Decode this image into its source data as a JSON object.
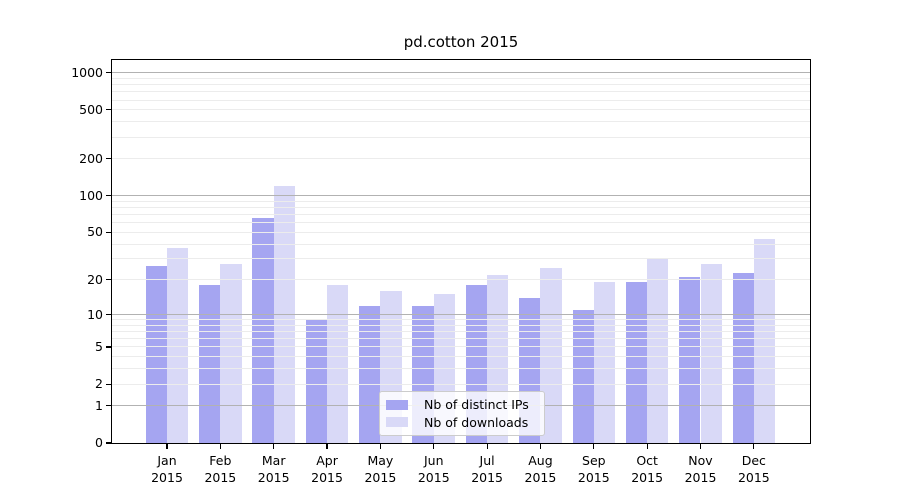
{
  "title": "pd.cotton 2015",
  "colors": {
    "background": "#ffffff",
    "ips_bar": "#a5a5f1",
    "downloads_bar": "#d9d9f7",
    "major_gridline": "#b2b2b2",
    "minor_gridline": "#ececec",
    "axis": "#000000",
    "text": "#000000",
    "legend_border": "#cccccc",
    "legend_background": "rgba(255,255,255,0.8)"
  },
  "chart_data": {
    "type": "bar",
    "title": "pd.cotton 2015",
    "categories": [
      "Jan",
      "Feb",
      "Mar",
      "Apr",
      "May",
      "Jun",
      "Jul",
      "Aug",
      "Sep",
      "Oct",
      "Nov",
      "Dec"
    ],
    "category_year": "2015",
    "series": [
      {
        "name": "Nb of distinct IPs",
        "color": "#a5a5f1",
        "values": [
          26,
          18,
          66,
          9,
          12,
          12,
          18,
          14,
          11,
          19,
          21,
          23
        ]
      },
      {
        "name": "Nb of downloads",
        "color": "#d9d9f7",
        "values": [
          37,
          27,
          120,
          18,
          16,
          15,
          22,
          25,
          19,
          30,
          27,
          44
        ]
      }
    ],
    "yscale": "log1p",
    "ylim": [
      0,
      1270
    ],
    "y_ticks": [
      0,
      1,
      2,
      5,
      10,
      20,
      50,
      100,
      200,
      500,
      1000
    ],
    "y_major_grid": [
      1,
      10,
      100,
      1000
    ],
    "y_minor_grid": [
      2,
      3,
      4,
      5,
      6,
      7,
      8,
      9,
      20,
      30,
      40,
      50,
      60,
      70,
      80,
      90,
      200,
      300,
      400,
      500,
      600,
      700,
      800,
      900
    ],
    "grid": true,
    "legend_position": "lower-center",
    "xlabel": "",
    "ylabel": ""
  }
}
